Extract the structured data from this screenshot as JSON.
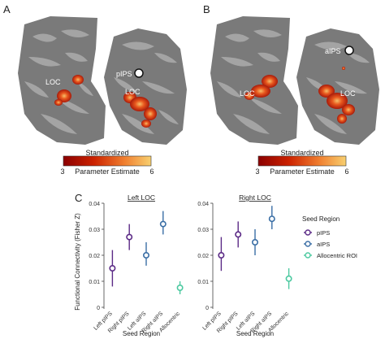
{
  "panels": {
    "a": {
      "letter": "A",
      "seed_label": "pIPS",
      "roi_label_left": "LOC",
      "roi_label_right": "LOC"
    },
    "b": {
      "letter": "B",
      "seed_label": "aIPS",
      "roi_label_left": "LOC",
      "roi_label_right": "LOC"
    },
    "c": {
      "letter": "C"
    }
  },
  "colorbar": {
    "title_line1": "Standardized",
    "title_line2": "Parameter Estimate",
    "min_label": "3",
    "max_label": "6",
    "colors": [
      "#8b0000",
      "#cc2200",
      "#f08030",
      "#f8d070"
    ]
  },
  "chart_data": [
    {
      "type": "scatter",
      "title": "Left LOC",
      "xlabel": "Seed Region",
      "ylabel": "Functional Connectivity (Fisher Z)",
      "ylim": [
        0,
        0.04
      ],
      "yticks": [
        "0",
        "0.01",
        "0.02",
        "0.03",
        "0.04"
      ],
      "categories": [
        "Left pIPS",
        "Right pIPS",
        "Left aIPS",
        "Right aIPS",
        "Allocentric"
      ],
      "points": [
        {
          "category": "Left pIPS",
          "series": "pIPS",
          "mean": 0.015,
          "lo": 0.008,
          "hi": 0.022
        },
        {
          "category": "Right pIPS",
          "series": "pIPS",
          "mean": 0.027,
          "lo": 0.022,
          "hi": 0.032
        },
        {
          "category": "Left aIPS",
          "series": "aIPS",
          "mean": 0.02,
          "lo": 0.016,
          "hi": 0.025
        },
        {
          "category": "Right aIPS",
          "series": "aIPS",
          "mean": 0.032,
          "lo": 0.028,
          "hi": 0.037
        },
        {
          "category": "Allocentric",
          "series": "Allocentric ROI",
          "mean": 0.0075,
          "lo": 0.005,
          "hi": 0.01
        }
      ]
    },
    {
      "type": "scatter",
      "title": "Right LOC",
      "xlabel": "Seed Region",
      "ylabel": "",
      "ylim": [
        0,
        0.04
      ],
      "yticks": [
        "0",
        "0.01",
        "0.02",
        "0.03",
        "0.04"
      ],
      "categories": [
        "Left pIPS",
        "Right pIPS",
        "Left aIPS",
        "Right aIPS",
        "Allocentric"
      ],
      "points": [
        {
          "category": "Left pIPS",
          "series": "pIPS",
          "mean": 0.02,
          "lo": 0.014,
          "hi": 0.027
        },
        {
          "category": "Right pIPS",
          "series": "pIPS",
          "mean": 0.028,
          "lo": 0.023,
          "hi": 0.033
        },
        {
          "category": "Left aIPS",
          "series": "aIPS",
          "mean": 0.025,
          "lo": 0.02,
          "hi": 0.03
        },
        {
          "category": "Right aIPS",
          "series": "aIPS",
          "mean": 0.034,
          "lo": 0.03,
          "hi": 0.039
        },
        {
          "category": "Allocentric",
          "series": "Allocentric ROI",
          "mean": 0.011,
          "lo": 0.007,
          "hi": 0.015
        }
      ]
    }
  ],
  "legend": {
    "title": "Seed Region",
    "items": [
      {
        "label": "pIPS",
        "color": "#5b2a86"
      },
      {
        "label": "aIPS",
        "color": "#3a6ea5"
      },
      {
        "label": "Allocentric ROI",
        "color": "#4cc9a0"
      }
    ]
  }
}
